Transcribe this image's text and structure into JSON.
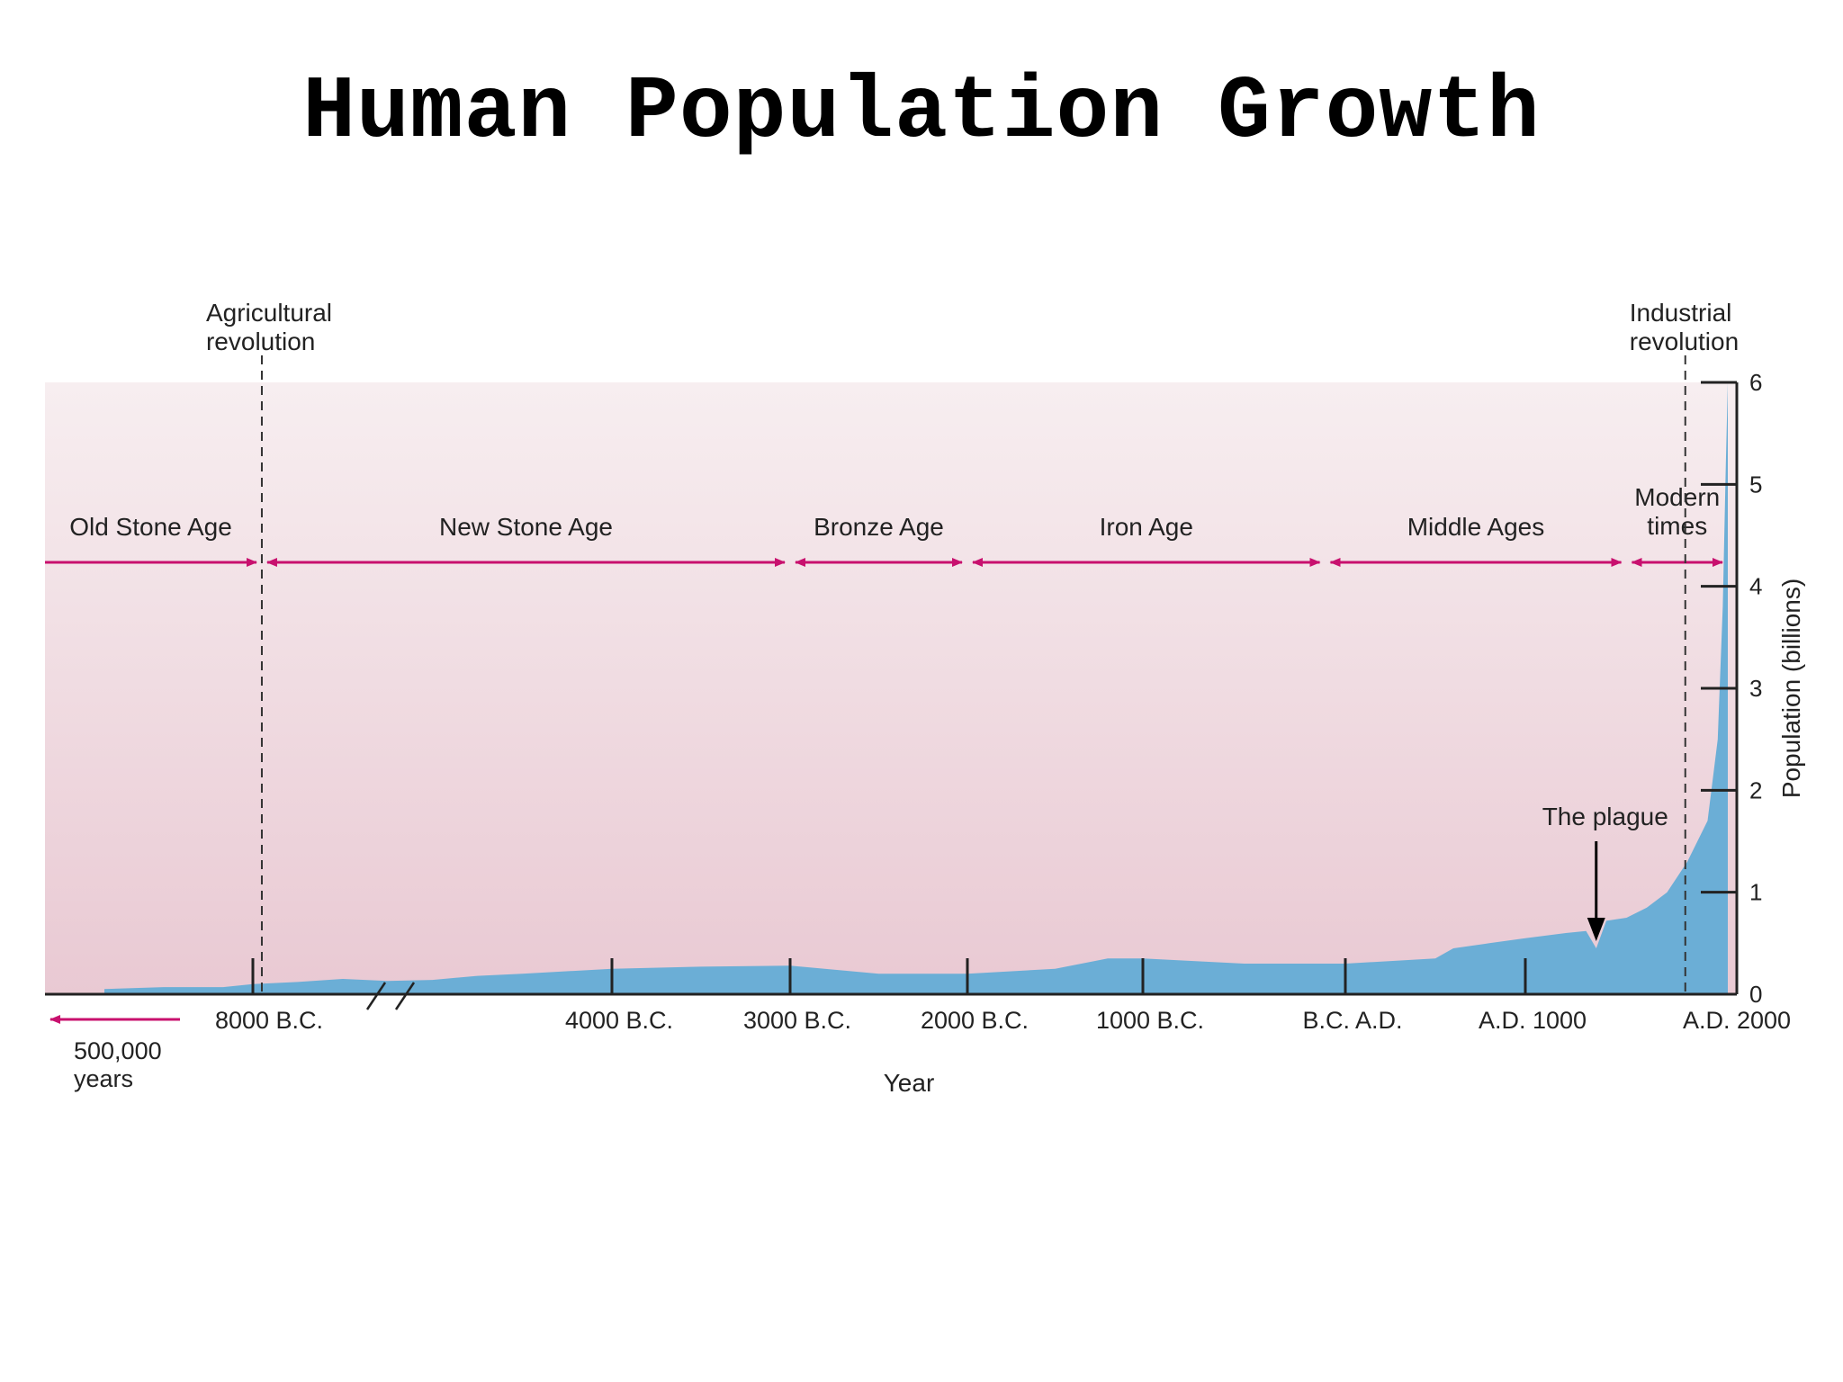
{
  "slide": {
    "title": "Human Population Growth"
  },
  "chart_data": {
    "type": "area",
    "title": "Human Population Growth",
    "xlabel": "Year",
    "ylabel": "Population (billions)",
    "ylim": [
      0,
      6
    ],
    "y_ticks": [
      0,
      1,
      2,
      3,
      4,
      5,
      6
    ],
    "x_tick_labels": [
      {
        "label": "8000 B.C.",
        "year": -8000
      },
      {
        "label": "4000 B.C.",
        "year": -4000
      },
      {
        "label": "3000 B.C.",
        "year": -3000
      },
      {
        "label": "2000 B.C.",
        "year": -2000
      },
      {
        "label": "1000 B.C.",
        "year": -1000
      },
      {
        "label": "B.C. A.D.",
        "year": 0
      },
      {
        "label": "A.D. 1000",
        "year": 1000
      },
      {
        "label": "A.D. 2000",
        "year": 2000
      }
    ],
    "pre_history_note": "500,000\nyears",
    "axis_break": true,
    "series": [
      {
        "values": [
          {
            "year": -10500,
            "pop": 0.05
          },
          {
            "year": -9500,
            "pop": 0.07
          },
          {
            "year": -8500,
            "pop": 0.07
          },
          {
            "year": -8000,
            "pop": 0.1
          },
          {
            "year": -7500,
            "pop": 0.12
          },
          {
            "year": -7000,
            "pop": 0.15
          },
          {
            "year": -6500,
            "pop": 0.13
          },
          {
            "year": -6000,
            "pop": 0.14
          },
          {
            "year": -5500,
            "pop": 0.18
          },
          {
            "year": -5000,
            "pop": 0.2
          },
          {
            "year": -4000,
            "pop": 0.25
          },
          {
            "year": -3500,
            "pop": 0.27
          },
          {
            "year": -3000,
            "pop": 0.28
          },
          {
            "year": -2500,
            "pop": 0.2
          },
          {
            "year": -2000,
            "pop": 0.2
          },
          {
            "year": -1500,
            "pop": 0.25
          },
          {
            "year": -1200,
            "pop": 0.35
          },
          {
            "year": -1000,
            "pop": 0.35
          },
          {
            "year": -500,
            "pop": 0.3
          },
          {
            "year": 0,
            "pop": 0.3
          },
          {
            "year": 500,
            "pop": 0.35
          },
          {
            "year": 600,
            "pop": 0.45
          },
          {
            "year": 800,
            "pop": 0.5
          },
          {
            "year": 1000,
            "pop": 0.55
          },
          {
            "year": 1200,
            "pop": 0.6
          },
          {
            "year": 1300,
            "pop": 0.62
          },
          {
            "year": 1350,
            "pop": 0.45
          },
          {
            "year": 1400,
            "pop": 0.72
          },
          {
            "year": 1500,
            "pop": 0.75
          },
          {
            "year": 1600,
            "pop": 0.85
          },
          {
            "year": 1700,
            "pop": 1.0
          },
          {
            "year": 1800,
            "pop": 1.3
          },
          {
            "year": 1900,
            "pop": 1.7
          },
          {
            "year": 1950,
            "pop": 2.5
          },
          {
            "year": 1975,
            "pop": 3.8
          },
          {
            "year": 1990,
            "pop": 5.2
          },
          {
            "year": 2000,
            "pop": 6.0
          }
        ]
      }
    ],
    "eras": [
      {
        "label": "Old Stone Age",
        "from": -11500,
        "to": -7900
      },
      {
        "label": "New Stone Age",
        "from": -7900,
        "to": -3000
      },
      {
        "label": "Bronze Age",
        "from": -3000,
        "to": -2000
      },
      {
        "label": "Iron Age",
        "from": -2000,
        "to": -100
      },
      {
        "label": "Middle Ages",
        "from": -100,
        "to": 1500
      },
      {
        "label": "Modern\ntimes",
        "from": 1500,
        "to": 2000
      }
    ],
    "events": [
      {
        "label": "Agricultural\nrevolution",
        "year": -7900
      },
      {
        "label": "Industrial\nrevolution",
        "year": 1790
      }
    ],
    "annotations": [
      {
        "label": "The plague",
        "year": 1350
      }
    ],
    "colors": {
      "area": "#6baed6",
      "background_top": "#f7eef0",
      "background_bottom": "#e9c9d3",
      "era_arrows": "#c8106e",
      "axis": "#222222"
    }
  }
}
